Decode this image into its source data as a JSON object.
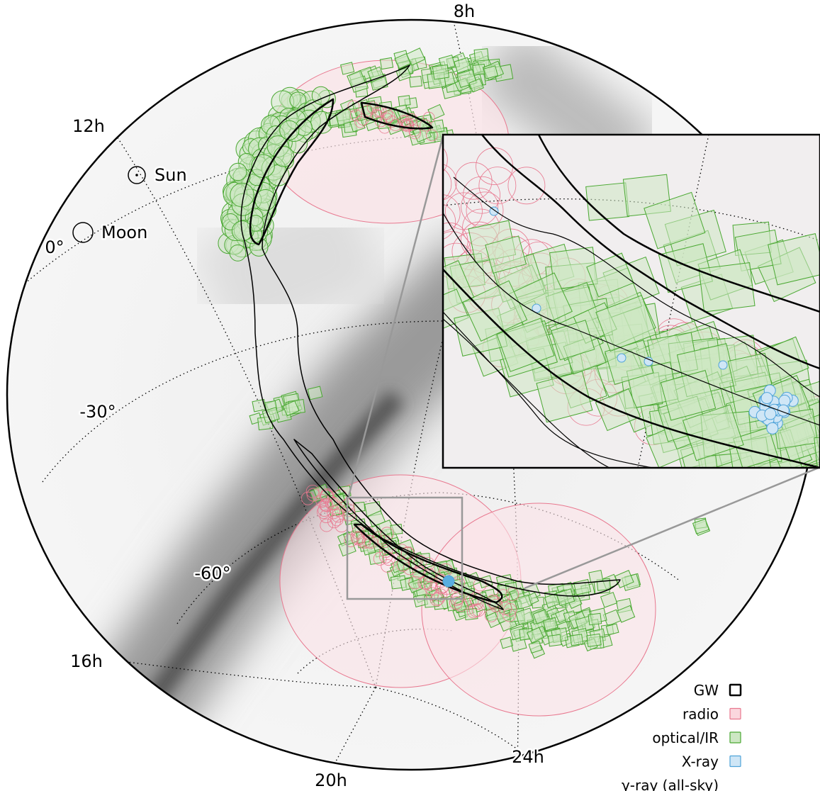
{
  "map": {
    "ra_labels": [
      {
        "text": "8h"
      },
      {
        "text": "12h"
      },
      {
        "text": "16h"
      },
      {
        "text": "20h"
      },
      {
        "text": "24h"
      }
    ],
    "dec_labels": [
      {
        "text": "0°"
      },
      {
        "text": "-30°"
      },
      {
        "text": "-60°"
      }
    ],
    "bodies": [
      {
        "text": "Sun"
      },
      {
        "text": "Moon"
      }
    ],
    "legend": [
      {
        "text": "GW",
        "color": "#000000",
        "fill": "#ffffff"
      },
      {
        "text": "radio",
        "color": "#e8788f",
        "fill": "#fbd7de"
      },
      {
        "text": "optical/IR",
        "color": "#4aa832",
        "fill": "#cde7c3"
      },
      {
        "text": "X-ray",
        "color": "#4fa3d9",
        "fill": "#cfe6f6"
      },
      {
        "text": "γ-ray (all-sky)"
      }
    ]
  }
}
